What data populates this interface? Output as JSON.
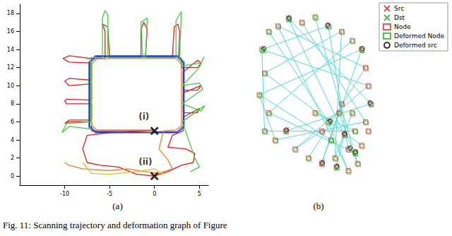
{
  "caption": "Fig. 11: Scanning trajectory and deformation graph of Figure",
  "chart_data": [
    {
      "type": "line",
      "title": "(a)",
      "grid": false,
      "tick_labels": true,
      "xlim": [
        -15,
        6
      ],
      "xticks": [
        -10,
        -5,
        0,
        5
      ],
      "ylim": [
        -1,
        19
      ],
      "yticks": [
        0,
        2,
        4,
        6,
        8,
        10,
        12,
        14,
        16,
        18
      ],
      "series": [
        {
          "color": "#e02020",
          "x": [
            0,
            -3,
            -7,
            -7,
            -9.5,
            -10,
            -9.5,
            -7,
            -7,
            -9.8,
            -10,
            -9.8,
            -7,
            -7,
            -9.5,
            -10,
            -9.5,
            -7,
            -7,
            -9.5,
            -10.2,
            -9.5,
            -7,
            -6,
            -5.5,
            -5.5,
            -5.8,
            -5.2,
            -5,
            -1.5,
            -1.5,
            -1.2,
            -0.8,
            -1,
            2,
            2.2,
            2.6,
            2.8,
            2.7,
            3,
            3,
            4.8,
            5.2,
            4.8,
            3.2,
            3.2,
            4.8,
            5.2,
            3.2,
            3.2,
            4.8,
            5,
            3.2,
            3.2,
            2,
            1.5,
            3.5,
            4.5,
            4.3,
            3,
            1.5,
            0,
            -2,
            -4,
            -6,
            -7.5,
            -8,
            -7.5,
            -5,
            0
          ],
          "values": [
            5,
            5,
            5,
            6,
            6,
            5.8,
            6.2,
            6.2,
            8,
            8,
            8.3,
            8.5,
            8.4,
            10.2,
            10,
            10.5,
            10.8,
            10.6,
            12.5,
            12.6,
            13,
            13.3,
            13,
            13,
            13,
            16,
            16.8,
            16.5,
            13.2,
            13.2,
            16.2,
            17,
            16.3,
            13.2,
            13.2,
            16.5,
            16.8,
            16,
            13.2,
            13,
            12,
            12,
            12.5,
            12.8,
            11.5,
            9.5,
            9.5,
            10,
            9.2,
            7,
            7,
            7.5,
            6.5,
            5,
            4.5,
            3.2,
            3,
            2.5,
            1.5,
            1.2,
            0.5,
            0,
            0.2,
            1,
            1.2,
            1.5,
            3,
            4.5,
            4.8,
            5
          ]
        },
        {
          "color": "#2040e0",
          "x": [
            0,
            -6.6,
            -7.3,
            -7.3,
            -6.6,
            2.6,
            3.3,
            3.3,
            2.6,
            0,
            -6.5,
            -7.2,
            -7.2,
            -6.5,
            2.5,
            3.2,
            3.2,
            2.5,
            0
          ],
          "values": [
            4.8,
            4.8,
            5.4,
            12.6,
            13.3,
            13.3,
            12.6,
            5.4,
            4.8,
            4.8,
            4.9,
            5.5,
            12.5,
            13.2,
            13.2,
            12.5,
            5.5,
            4.9,
            4.9
          ]
        },
        {
          "color": "#f08020",
          "x": [
            0,
            -6.4,
            -7,
            -7,
            -6.4,
            2.4,
            3,
            3,
            2.4,
            1,
            0.5,
            1.5,
            2,
            0.5,
            -1,
            -3,
            -5,
            -8,
            -9.5,
            -10
          ],
          "values": [
            5.1,
            5.1,
            5.6,
            12.4,
            13,
            13,
            12.4,
            5.6,
            5.1,
            5,
            3,
            1.8,
            0.8,
            0.3,
            0.5,
            0.8,
            0.6,
            0.8,
            1.2,
            1.5
          ]
        },
        {
          "color": "#40d040",
          "x": [
            -7,
            -9.5,
            -10.3,
            -9.8,
            -7.1,
            -7.1,
            -5.8,
            -5.8,
            -5.5,
            -5.2,
            -5.2,
            -1.3,
            -1.5,
            -0.8,
            -1,
            2.4,
            2.4,
            3,
            2.8,
            3.1,
            5.2,
            5.5,
            5,
            3.1,
            5,
            5.4,
            3.1,
            5.2,
            5.6,
            3.1,
            4.5,
            5,
            4
          ],
          "values": [
            5.2,
            5.5,
            4.8,
            5.8,
            6,
            13.1,
            13.1,
            17.5,
            18.3,
            17.8,
            13.1,
            13.1,
            17,
            17.5,
            13.1,
            13.1,
            17.2,
            18.2,
            13.1,
            12.2,
            12.5,
            13.2,
            12,
            10,
            10.3,
            9.6,
            8,
            7.2,
            7.8,
            6,
            2,
            1,
            0.5
          ]
        },
        {
          "color": "#e0c020",
          "x": [
            -8,
            -7,
            -5,
            -2,
            0,
            1
          ],
          "values": [
            1.5,
            0.3,
            0.2,
            0.5,
            0.8,
            0.2
          ]
        }
      ],
      "annotations": [
        {
          "text": "(i)",
          "x": 0,
          "y": 5,
          "marker": "x",
          "color": "#000000"
        },
        {
          "text": "(ii)",
          "x": 0,
          "y": 0,
          "marker": "x",
          "color": "#000000"
        }
      ]
    },
    {
      "type": "scatter",
      "title": "(b)",
      "grid": false,
      "tick_labels": false,
      "legend": "upper right",
      "xlim": [
        0,
        100
      ],
      "ylim": [
        0,
        100
      ],
      "edges": {
        "color": "#40d8d8",
        "lines": [
          [
            [
              10,
              75
            ],
            [
              60,
              88
            ]
          ],
          [
            [
              10,
              75
            ],
            [
              90,
              55
            ]
          ],
          [
            [
              15,
              85
            ],
            [
              60,
              35
            ]
          ],
          [
            [
              12,
              62
            ],
            [
              70,
              85
            ]
          ],
          [
            [
              12,
              62
            ],
            [
              85,
              22
            ]
          ],
          [
            [
              8,
              50
            ],
            [
              85,
              75
            ]
          ],
          [
            [
              8,
              50
            ],
            [
              62,
              25
            ]
          ],
          [
            [
              15,
              40
            ],
            [
              78,
              80
            ]
          ],
          [
            [
              15,
              40
            ],
            [
              80,
              18
            ]
          ],
          [
            [
              22,
              88
            ],
            [
              88,
              65
            ]
          ],
          [
            [
              22,
              88
            ],
            [
              75,
              8
            ]
          ],
          [
            [
              30,
              92
            ],
            [
              92,
              45
            ]
          ],
          [
            [
              30,
              92
            ],
            [
              72,
              28
            ]
          ],
          [
            [
              40,
              90
            ],
            [
              88,
              35
            ]
          ],
          [
            [
              50,
              93
            ],
            [
              82,
              12
            ]
          ],
          [
            [
              60,
              88
            ],
            [
              75,
              20
            ]
          ],
          [
            [
              70,
              85
            ],
            [
              65,
              15
            ]
          ],
          [
            [
              85,
              75
            ],
            [
              55,
              12
            ]
          ],
          [
            [
              88,
              65
            ],
            [
              45,
              15
            ]
          ],
          [
            [
              90,
              55
            ],
            [
              35,
              20
            ]
          ],
          [
            [
              92,
              45
            ],
            [
              28,
              30
            ]
          ],
          [
            [
              88,
              35
            ],
            [
              20,
              25
            ]
          ],
          [
            [
              80,
              30
            ],
            [
              12,
              30
            ]
          ],
          [
            [
              65,
              15
            ],
            [
              78,
              40
            ]
          ],
          [
            [
              55,
              12
            ],
            [
              70,
              45
            ]
          ],
          [
            [
              35,
              20
            ],
            [
              55,
              30
            ]
          ],
          [
            [
              60,
              35
            ],
            [
              75,
              8
            ]
          ],
          [
            [
              68,
              40
            ],
            [
              82,
              12
            ]
          ],
          [
            [
              72,
              28
            ],
            [
              66,
              10
            ]
          ],
          [
            [
              10,
              75
            ],
            [
              12,
              30
            ]
          ],
          [
            [
              8,
              50
            ],
            [
              20,
              25
            ]
          ],
          [
            [
              50,
              40
            ],
            [
              80,
              30
            ]
          ]
        ]
      },
      "series": [
        {
          "name": "Src",
          "color": "#d62728",
          "marker": "x",
          "points": [
            [
              11,
              76
            ],
            [
              30,
              93
            ],
            [
              60,
              89
            ],
            [
              85,
              76
            ],
            [
              91,
              46
            ],
            [
              76,
              21
            ],
            [
              56,
              13
            ],
            [
              29,
              31
            ],
            [
              61,
              36
            ],
            [
              73,
              29
            ],
            [
              81,
              19
            ],
            [
              67,
              11
            ]
          ]
        },
        {
          "name": "Dst",
          "color": "#2ca02c",
          "marker": "x",
          "points": [
            [
              12,
              74
            ],
            [
              31,
              91
            ],
            [
              59,
              87
            ],
            [
              86,
              74
            ],
            [
              92,
              44
            ],
            [
              77,
              19
            ],
            [
              55,
              11
            ],
            [
              28,
              29
            ],
            [
              62,
              34
            ],
            [
              72,
              27
            ],
            [
              80,
              17
            ],
            [
              66,
              9
            ]
          ]
        },
        {
          "name": "Node",
          "color": "#e03030",
          "marker": "square",
          "points": [
            [
              10,
              75
            ],
            [
              15,
              85
            ],
            [
              12,
              62
            ],
            [
              8,
              50
            ],
            [
              15,
              40
            ],
            [
              22,
              88
            ],
            [
              30,
              92
            ],
            [
              40,
              90
            ],
            [
              50,
              93
            ],
            [
              60,
              88
            ],
            [
              70,
              85
            ],
            [
              78,
              80
            ],
            [
              85,
              75
            ],
            [
              88,
              65
            ],
            [
              90,
              55
            ],
            [
              92,
              45
            ],
            [
              88,
              35
            ],
            [
              80,
              30
            ],
            [
              75,
              20
            ],
            [
              65,
              15
            ],
            [
              55,
              12
            ],
            [
              45,
              15
            ],
            [
              35,
              20
            ],
            [
              28,
              30
            ],
            [
              20,
              25
            ],
            [
              12,
              30
            ],
            [
              60,
              35
            ],
            [
              68,
              40
            ],
            [
              72,
              28
            ],
            [
              80,
              18
            ],
            [
              85,
              22
            ],
            [
              78,
              40
            ],
            [
              70,
              45
            ],
            [
              62,
              25
            ],
            [
              55,
              30
            ],
            [
              66,
              10
            ],
            [
              75,
              8
            ],
            [
              82,
              12
            ],
            [
              90,
              30
            ],
            [
              50,
              40
            ]
          ]
        },
        {
          "name": "Deformed Node",
          "color": "#20b020",
          "marker": "square",
          "points": [
            [
              10.6,
              74.4
            ],
            [
              15.6,
              84.4
            ],
            [
              12.6,
              61.4
            ],
            [
              8.6,
              49.4
            ],
            [
              15.6,
              39.4
            ],
            [
              22.6,
              87.4
            ],
            [
              30.6,
              91.4
            ],
            [
              40.6,
              89.4
            ],
            [
              50.6,
              92.4
            ],
            [
              60.6,
              87.4
            ],
            [
              70.6,
              84.4
            ],
            [
              78.6,
              79.4
            ],
            [
              85.6,
              74.4
            ],
            [
              88.6,
              64.4
            ],
            [
              90.6,
              54.4
            ],
            [
              92.6,
              44.4
            ],
            [
              88.6,
              34.4
            ],
            [
              80.6,
              29.4
            ],
            [
              75.6,
              19.4
            ],
            [
              65.6,
              14.4
            ],
            [
              55.6,
              11.4
            ],
            [
              45.6,
              14.4
            ],
            [
              35.6,
              19.4
            ],
            [
              28.6,
              29.4
            ],
            [
              20.6,
              24.4
            ],
            [
              12.6,
              29.4
            ],
            [
              60.6,
              34.4
            ],
            [
              68.6,
              39.4
            ],
            [
              72.6,
              27.4
            ],
            [
              80.6,
              17.4
            ],
            [
              85.6,
              21.4
            ],
            [
              78.6,
              39.4
            ],
            [
              70.6,
              44.4
            ],
            [
              62.6,
              24.4
            ],
            [
              55.6,
              29.4
            ],
            [
              66.6,
              9.4
            ],
            [
              75.6,
              7.4
            ],
            [
              82.6,
              11.4
            ],
            [
              90.6,
              29.4
            ],
            [
              50.6,
              39.4
            ]
          ]
        },
        {
          "name": "Deformed src",
          "color": "#000000",
          "marker": "circle",
          "points": [
            [
              11.5,
              75.5
            ],
            [
              30.5,
              92.5
            ],
            [
              59.5,
              88.5
            ],
            [
              85.5,
              75.5
            ],
            [
              91.5,
              45.5
            ],
            [
              76.5,
              20.5
            ],
            [
              55.5,
              12.5
            ],
            [
              28.5,
              30.5
            ],
            [
              61.5,
              35.5
            ],
            [
              72.5,
              28.5
            ],
            [
              80.5,
              18.5
            ],
            [
              66.5,
              10.5
            ]
          ]
        }
      ]
    }
  ]
}
